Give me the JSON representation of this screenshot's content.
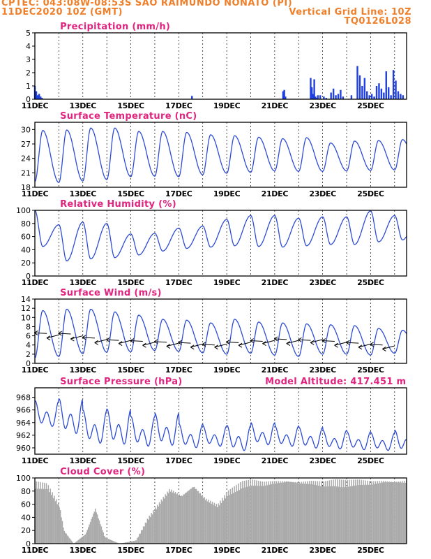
{
  "header": {
    "line1": "CPTEC:  043:08W-08:53S  SAO RAIMUNDO NONATO (PI)",
    "line2": "11DEC2020 10Z (GMT)",
    "grid_note": "Vertical Grid Line: 10Z",
    "code": "TQ0126L028"
  },
  "x_labels": [
    "11DEC",
    "13DEC",
    "15DEC",
    "17DEC",
    "19DEC",
    "21DEC",
    "23DEC",
    "25DEC"
  ],
  "chart_data": [
    {
      "type": "bar",
      "title": "Precipitation  (mm/h)",
      "ylim": [
        0,
        5
      ],
      "yticks": [
        0,
        1,
        2,
        3,
        4,
        5
      ],
      "color": "#1f3fe0",
      "x_unit": "days since 11DEC 10Z",
      "x": [
        0.0,
        0.06,
        0.12,
        0.18,
        0.24,
        0.3,
        6.55,
        10.35,
        10.4,
        10.45,
        11.5,
        11.55,
        11.6,
        11.65,
        11.7,
        11.75,
        11.8,
        11.9,
        12.05,
        12.15,
        12.35,
        12.45,
        12.55,
        12.65,
        12.75,
        12.85,
        13.2,
        13.45,
        13.55,
        13.65,
        13.75,
        13.85,
        13.95,
        14.05,
        14.15,
        14.25,
        14.35,
        14.45,
        14.55,
        14.65,
        14.75,
        14.85,
        14.95,
        15.05,
        15.15,
        15.25,
        15.35
      ],
      "values": [
        1.0,
        0.6,
        0.3,
        0.4,
        0.2,
        0.1,
        0.25,
        0.6,
        0.7,
        0.2,
        1.6,
        0.9,
        0.4,
        1.5,
        0.2,
        0.1,
        0.3,
        0.3,
        0.2,
        0.1,
        0.5,
        0.8,
        0.3,
        0.4,
        0.7,
        0.2,
        0.3,
        2.5,
        1.8,
        1.0,
        1.6,
        0.6,
        0.3,
        0.4,
        0.2,
        1.0,
        1.2,
        0.8,
        0.5,
        2.1,
        0.9,
        0.3,
        2.2,
        1.4,
        0.6,
        0.4,
        0.3
      ]
    },
    {
      "type": "line",
      "title": "Surface Temperature  (nC)",
      "ylim": [
        18,
        31.5
      ],
      "yticks": [
        18,
        21,
        24,
        27,
        30
      ],
      "color": "#2c4bd6",
      "daily_max": [
        29.8,
        29.9,
        30.3,
        30.3,
        29.6,
        29.6,
        29.4,
        28.9,
        28.7,
        28.4,
        28.1,
        28.3,
        27.2,
        27.6,
        27.7,
        27.9
      ],
      "daily_min": [
        19.2,
        19.0,
        19.3,
        19.6,
        20.2,
        20.3,
        20.2,
        20.6,
        20.9,
        21.1,
        21.4,
        21.3,
        21.3,
        21.4,
        21.5,
        21.6
      ]
    },
    {
      "type": "line",
      "title": "Relative Humidity  (%)",
      "ylim": [
        0,
        100
      ],
      "yticks": [
        0,
        20,
        40,
        60,
        80,
        100
      ],
      "color": "#2c4bd6",
      "daily_max": [
        100,
        78,
        82,
        80,
        64,
        65,
        73,
        76,
        86,
        92,
        92,
        88,
        90,
        90,
        99,
        92
      ],
      "daily_min": [
        45,
        23,
        26,
        28,
        32,
        38,
        42,
        44,
        46,
        45,
        44,
        46,
        48,
        48,
        52,
        55
      ]
    },
    {
      "type": "line",
      "title": "Surface Wind  (m/s)",
      "ylim": [
        0,
        14
      ],
      "yticks": [
        0,
        2,
        4,
        6,
        8,
        10,
        12,
        14
      ],
      "color": "#2c4bd6",
      "daily_max": [
        11.5,
        11.8,
        11.8,
        11.2,
        10.5,
        9.6,
        9.4,
        8.8,
        9.6,
        9.0,
        8.8,
        8.6,
        8.4,
        8.2,
        7.6,
        7.2
      ],
      "daily_min": [
        1.2,
        1.5,
        2.1,
        2.4,
        2.5,
        2.8,
        2.6,
        2.3,
        2.0,
        2.2,
        1.8,
        1.5,
        2.0,
        2.0,
        1.8,
        2.2
      ],
      "wind_arrows": {
        "times": [
          0.5,
          1.0,
          1.5,
          2.0,
          2.5,
          3.0,
          3.5,
          4.0,
          4.5,
          5.0,
          5.5,
          6.0,
          6.5,
          7.0,
          7.5,
          8.0,
          8.5,
          9.0,
          9.5,
          10.0,
          10.5,
          11.0,
          11.5,
          12.0,
          12.5,
          13.0,
          13.5,
          14.0,
          14.5,
          15.0
        ],
        "speeds": [
          6.5,
          6.2,
          6.4,
          6.0,
          5.5,
          5.2,
          5.0,
          5.0,
          4.8,
          4.6,
          4.6,
          4.4,
          4.4,
          4.2,
          4.0,
          4.2,
          4.5,
          4.6,
          4.8,
          5.0,
          5.2,
          5.0,
          5.0,
          5.2,
          4.8,
          4.6,
          4.4,
          4.2,
          4.0,
          3.8
        ]
      }
    },
    {
      "type": "line",
      "title": "Surface Pressure  (hPa)",
      "subtitle": "Model Altitude: 417.451  m",
      "ylim": [
        959,
        969.5
      ],
      "yticks": [
        960,
        962,
        964,
        966,
        968
      ],
      "color": "#2c4bd6",
      "daily_max": [
        967.5,
        967.8,
        966.0,
        966.2,
        965.0,
        965.5,
        963.8,
        963.5,
        963.6,
        964.0,
        963.5,
        963.3,
        962.8,
        962.6,
        962.4,
        962.8
      ],
      "daily_min": [
        962.8,
        961.5,
        960.0,
        959.8,
        959.6,
        959.7,
        959.5,
        959.8,
        959.0,
        960.0,
        959.8,
        959.5,
        959.4,
        959.3,
        959.2,
        959.0
      ]
    },
    {
      "type": "bar",
      "title": "Cloud Cover  (%)",
      "ylim": [
        0,
        100
      ],
      "yticks": [
        0,
        20,
        40,
        60,
        80,
        100
      ],
      "color": "#aaaaaa",
      "x_unit": "days since 11DEC 10Z",
      "breakpoints": [
        [
          0.0,
          95
        ],
        [
          0.5,
          92
        ],
        [
          1.0,
          60
        ],
        [
          1.2,
          20
        ],
        [
          1.6,
          0
        ],
        [
          2.1,
          15
        ],
        [
          2.5,
          55
        ],
        [
          2.9,
          10
        ],
        [
          3.5,
          0
        ],
        [
          4.2,
          5
        ],
        [
          4.7,
          40
        ],
        [
          5.1,
          60
        ],
        [
          5.6,
          85
        ],
        [
          6.1,
          75
        ],
        [
          6.6,
          90
        ],
        [
          7.1,
          70
        ],
        [
          7.6,
          60
        ],
        [
          8.0,
          80
        ],
        [
          8.6,
          95
        ],
        [
          9.0,
          98
        ],
        [
          9.5,
          95
        ],
        [
          10.0,
          97
        ],
        [
          10.5,
          98
        ],
        [
          11.0,
          96
        ],
        [
          11.5,
          97
        ],
        [
          12.0,
          95
        ],
        [
          12.5,
          98
        ],
        [
          13.0,
          97
        ],
        [
          13.5,
          98
        ],
        [
          14.0,
          96
        ],
        [
          14.5,
          98
        ],
        [
          15.0,
          97
        ],
        [
          15.5,
          98
        ]
      ]
    }
  ]
}
